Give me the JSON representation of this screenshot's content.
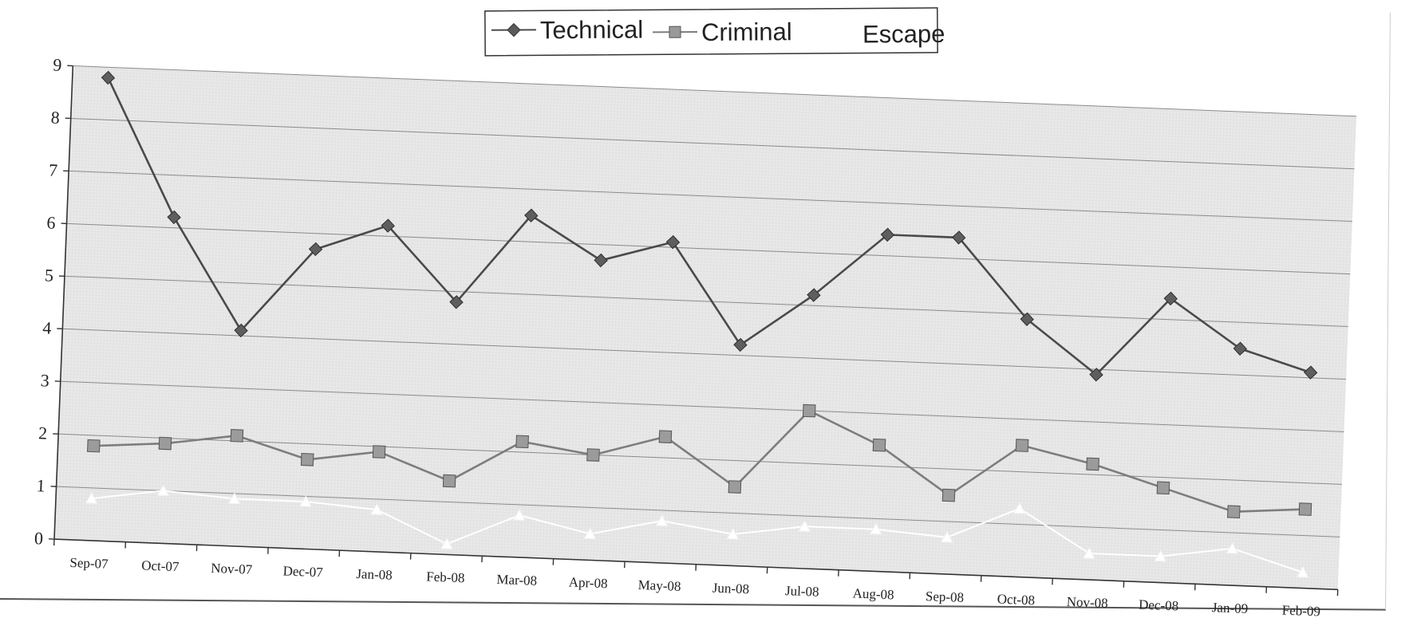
{
  "chart_data": {
    "type": "line",
    "title": "",
    "xlabel": "",
    "ylabel": "",
    "categories": [
      "Sep-07",
      "Oct-07",
      "Nov-07",
      "Dec-07",
      "Jan-08",
      "Feb-08",
      "Mar-08",
      "Apr-08",
      "May-08",
      "Jun-08",
      "Jul-08",
      "Aug-08",
      "Sep-08",
      "Oct-08",
      "Nov-08",
      "Dec-08",
      "Jan-09",
      "Feb-09"
    ],
    "ylim": [
      0,
      9
    ],
    "yticks": [
      "0",
      "1",
      "2",
      "3",
      "4",
      "5",
      "6",
      "7",
      "8",
      "9"
    ],
    "grid": true,
    "legend_position": "top",
    "series": [
      {
        "name": "Technical",
        "marker": "diamond",
        "color": "#4a4a4a",
        "values": [
          8.8,
          6.2,
          4.1,
          5.7,
          6.2,
          4.8,
          6.5,
          5.7,
          6.1,
          4.2,
          5.2,
          6.4,
          6.4,
          4.9,
          3.9,
          5.4,
          4.5,
          4.1
        ]
      },
      {
        "name": "Criminal",
        "marker": "square",
        "color": "#7d7d7d",
        "values": [
          1.8,
          1.9,
          2.1,
          1.7,
          1.9,
          1.4,
          2.2,
          2.0,
          2.4,
          1.5,
          3.0,
          2.4,
          1.5,
          2.5,
          2.2,
          1.8,
          1.4,
          1.5
        ]
      },
      {
        "name": "Escape",
        "marker": "triangle",
        "color": "#ffffff",
        "values": [
          0.8,
          1.0,
          0.9,
          0.9,
          0.8,
          0.2,
          0.8,
          0.5,
          0.8,
          0.6,
          0.8,
          0.8,
          0.7,
          1.3,
          0.5,
          0.5,
          0.7,
          0.3
        ]
      }
    ]
  }
}
